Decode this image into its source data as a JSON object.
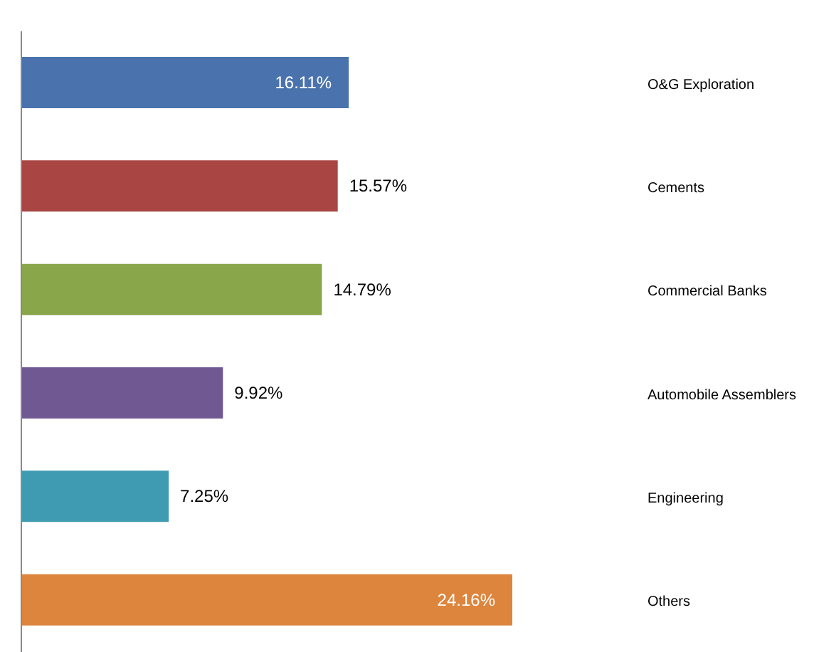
{
  "chart_data": {
    "type": "bar",
    "orientation": "horizontal",
    "categories": [
      "O&G Exploration",
      "Cements",
      "Commercial Banks",
      "Automobile Assemblers",
      "Engineering",
      "Others"
    ],
    "values": [
      16.11,
      15.57,
      14.79,
      9.92,
      7.25,
      24.16
    ],
    "value_labels": [
      "16.11%",
      "15.57%",
      "14.79%",
      "9.92%",
      "7.25%",
      "24.16%"
    ],
    "colors": [
      "#4a73ad",
      "#a94543",
      "#8aa64a",
      "#705893",
      "#3f9bb1",
      "#dd843d"
    ],
    "tick_labels": "y"
  }
}
